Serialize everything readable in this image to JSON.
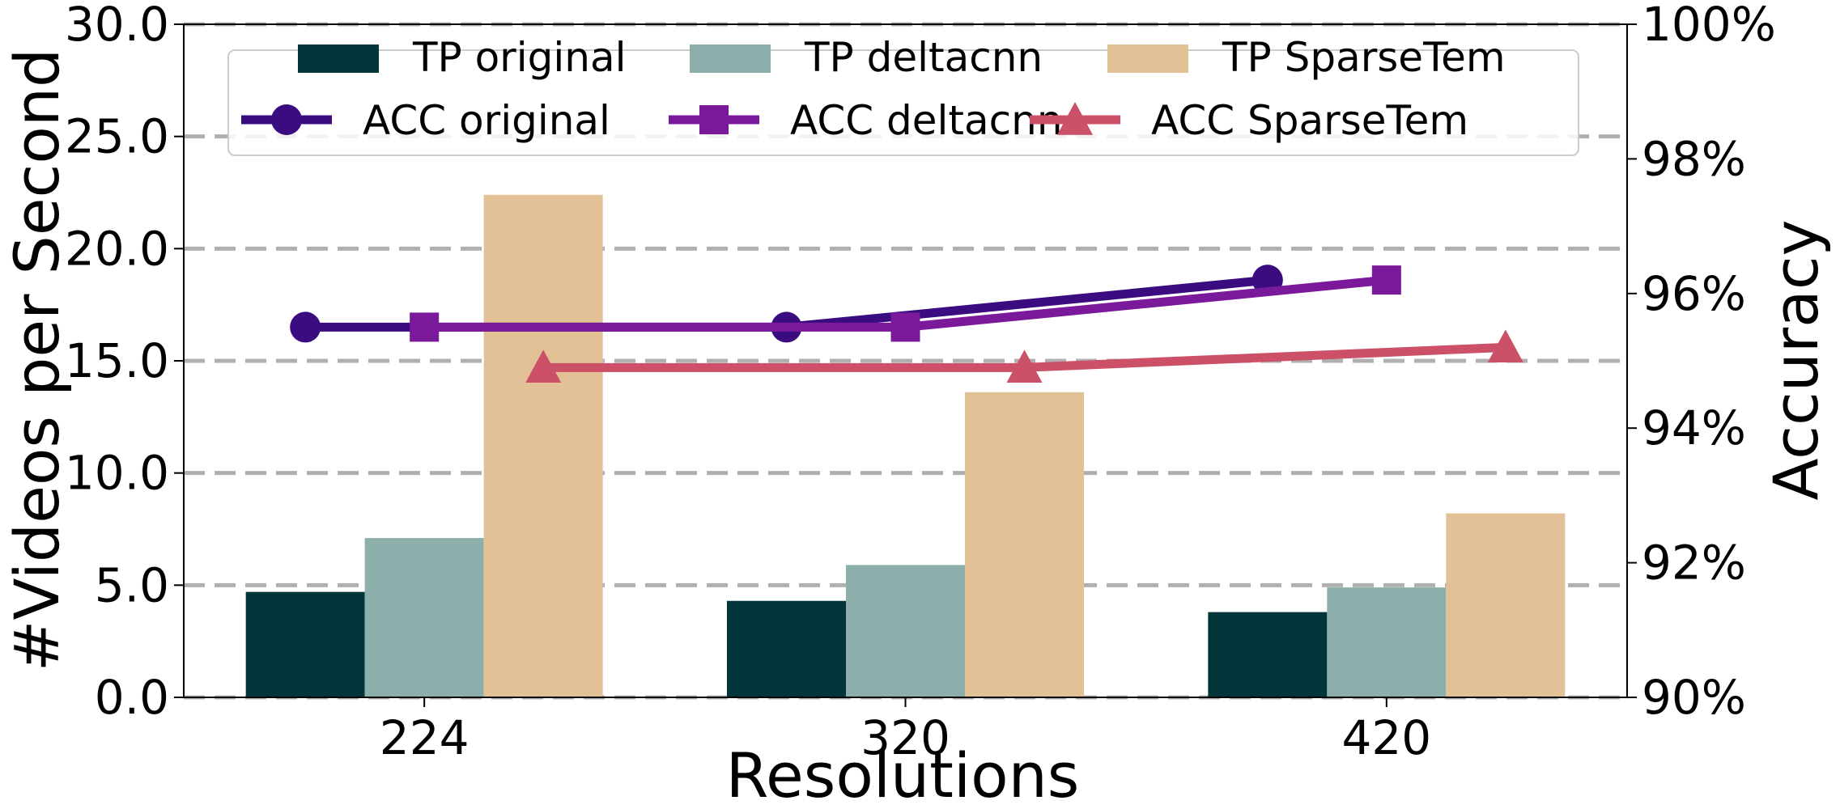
{
  "chart_data": {
    "type": "bar",
    "xlabel": "Resolutions",
    "ylabel": "#Videos per Second",
    "y2label": "Accuracy",
    "categories": [
      "224",
      "320",
      "420"
    ],
    "ylim": [
      0,
      30
    ],
    "yticks": [
      "0.0",
      "5.0",
      "10.0",
      "15.0",
      "20.0",
      "25.0",
      "30.0"
    ],
    "y2lim": [
      90,
      100
    ],
    "y2ticks": [
      "90%",
      "92%",
      "94%",
      "96%",
      "98%",
      "100%"
    ],
    "grid": "horizontal dashed",
    "legend_position": "top",
    "bar_series": [
      {
        "name": "TP original",
        "values": [
          4.7,
          4.3,
          3.8
        ],
        "color": "#03363a"
      },
      {
        "name": "TP deltacnn",
        "values": [
          7.1,
          5.9,
          4.9
        ],
        "color": "#8cafac"
      },
      {
        "name": "TP SparseTem",
        "values": [
          22.4,
          13.6,
          8.2
        ],
        "color": "#e2c196"
      }
    ],
    "line_series": [
      {
        "name": "ACC original",
        "values": [
          95.5,
          95.5,
          96.2
        ],
        "color": "#3a0c80",
        "marker": "circle"
      },
      {
        "name": "ACC deltacnn",
        "values": [
          95.5,
          95.5,
          96.2
        ],
        "color": "#7a1a9a",
        "marker": "square"
      },
      {
        "name": "ACC SparseTem",
        "values": [
          94.9,
          94.9,
          95.2
        ],
        "color": "#cc5068",
        "marker": "triangle"
      }
    ]
  }
}
